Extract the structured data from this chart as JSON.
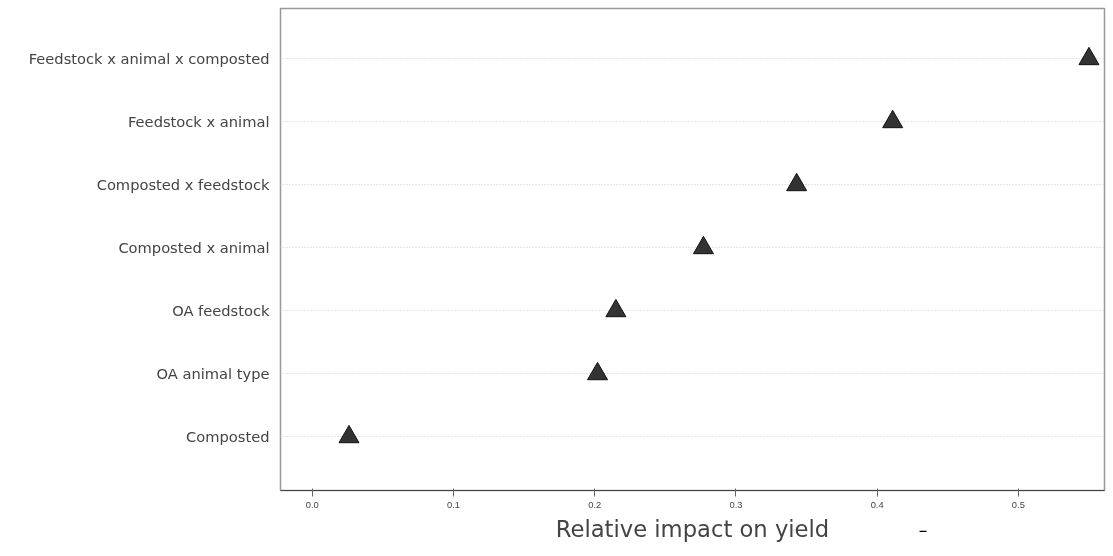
{
  "chart_data": {
    "type": "scatter",
    "xlabel": "Relative impact on yield",
    "categories": [
      "Feedstock x animal x composted",
      "Feedstock x animal",
      "Composted x feedstock",
      "Composted x animal",
      "OA feedstock",
      "OA animal type",
      "Composted"
    ],
    "series": [
      {
        "color": "#333333",
        "values": [
          0.55,
          0.411,
          0.343,
          0.277,
          0.215,
          0.202,
          0.026
        ]
      }
    ],
    "orientation": "horizontal",
    "marker": "triangle",
    "grid": "y",
    "xlim": [
      -0.0225,
      0.561
    ],
    "xticks": [
      {
        "value": 0,
        "label": "0.0"
      },
      0.1,
      0.2,
      0.3,
      0.4,
      0.5
    ]
  }
}
